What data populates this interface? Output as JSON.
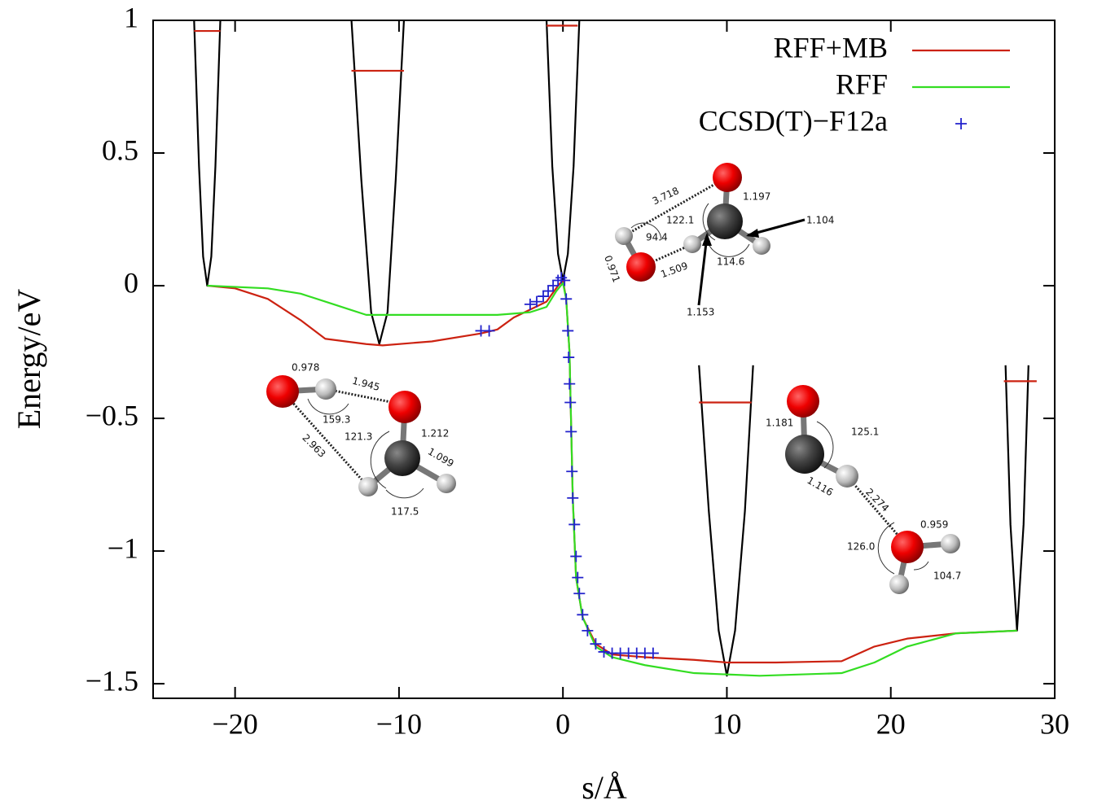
{
  "chart_data": {
    "type": "line",
    "x_label": "s/Å",
    "y_label": "Energy/eV",
    "xlim": [
      -25,
      30
    ],
    "ylim": [
      -1.555,
      1
    ],
    "xticks": [
      {
        "value": -20,
        "label": "−20"
      },
      {
        "value": -10,
        "label": "−10"
      },
      0,
      10,
      20,
      30
    ],
    "yticks": [
      {
        "value": -1.5,
        "label": "−1.5"
      },
      {
        "value": -1,
        "label": "−1"
      },
      {
        "value": -0.5,
        "label": "−0.5"
      },
      0,
      0.5,
      1
    ],
    "legend": "upper right",
    "series": [
      {
        "name": "RFF+MB",
        "color": "#cc2211",
        "style": "line",
        "x": [
          -21.7,
          -20,
          -18,
          -16,
          -14.5,
          -12,
          -11,
          -8,
          -5,
          -4,
          -3,
          -2,
          -1,
          -0.3,
          0,
          0.2,
          0.4,
          0.6,
          0.8,
          1.2,
          2,
          3,
          5,
          8,
          10,
          13,
          17,
          19,
          21,
          24,
          27.7
        ],
        "values": [
          0,
          -0.01,
          -0.05,
          -0.13,
          -0.2,
          -0.22,
          -0.225,
          -0.21,
          -0.18,
          -0.165,
          -0.12,
          -0.09,
          -0.06,
          0,
          0.02,
          -0.05,
          -0.25,
          -0.8,
          -1.1,
          -1.25,
          -1.35,
          -1.39,
          -1.4,
          -1.41,
          -1.42,
          -1.42,
          -1.415,
          -1.36,
          -1.33,
          -1.31,
          -1.3
        ]
      },
      {
        "name": "RFF",
        "color": "#33dd22",
        "style": "line",
        "x": [
          -21.7,
          -18,
          -16,
          -14,
          -12,
          -8,
          -4,
          -2,
          -1,
          -0.4,
          0,
          0.2,
          0.4,
          0.6,
          0.8,
          1.2,
          2,
          3,
          5,
          8,
          12,
          17,
          19,
          21,
          24,
          27.7
        ],
        "values": [
          0,
          -0.01,
          -0.03,
          -0.07,
          -0.11,
          -0.11,
          -0.11,
          -0.1,
          -0.08,
          -0.02,
          0.01,
          -0.05,
          -0.25,
          -0.8,
          -1.1,
          -1.25,
          -1.36,
          -1.4,
          -1.43,
          -1.46,
          -1.47,
          -1.46,
          -1.42,
          -1.36,
          -1.31,
          -1.3
        ]
      },
      {
        "name": "CCSD(T)−F12a",
        "color": "#2222cc",
        "style": "points",
        "x": [
          -5,
          -4.5,
          -2,
          -1.6,
          -1.2,
          -0.9,
          -0.6,
          -0.3,
          -0.1,
          0.1,
          0.2,
          0.3,
          0.35,
          0.4,
          0.45,
          0.5,
          0.55,
          0.6,
          0.7,
          0.8,
          0.9,
          1.0,
          1.2,
          1.5,
          2,
          2.5,
          3,
          3.5,
          4,
          4.5,
          5,
          5.5
        ],
        "values": [
          -0.17,
          -0.17,
          -0.07,
          -0.06,
          -0.04,
          -0.02,
          0,
          0.02,
          0.03,
          0.02,
          -0.05,
          -0.17,
          -0.27,
          -0.37,
          -0.44,
          -0.55,
          -0.7,
          -0.8,
          -0.9,
          -1.02,
          -1.1,
          -1.16,
          -1.24,
          -1.3,
          -1.35,
          -1.38,
          -1.385,
          -1.385,
          -1.385,
          -1.385,
          -1.385,
          -1.385
        ]
      },
      {
        "color": "#000000",
        "style": "line",
        "x": [
          -22.5,
          -22.2,
          -21.95,
          -21.7,
          -21.45,
          -21.2,
          -20.9
        ],
        "values": [
          1,
          0.45,
          0.11,
          0,
          0.11,
          0.45,
          1
        ]
      },
      {
        "color": "#000000",
        "style": "line",
        "x": [
          -12.9,
          -12.3,
          -11.7,
          -11.2,
          -10.7,
          -10.2,
          -9.7
        ],
        "values": [
          1,
          0.4,
          -0.1,
          -0.22,
          -0.1,
          0.4,
          1
        ]
      },
      {
        "color": "#000000",
        "style": "line",
        "x": [
          -1,
          -0.65,
          -0.3,
          0,
          0.3,
          0.65,
          1
        ],
        "values": [
          1,
          0.45,
          0.12,
          0.02,
          0.12,
          0.45,
          1
        ]
      },
      {
        "color": "#000000",
        "style": "line",
        "x": [
          8.3,
          8.9,
          9.5,
          10,
          10.5,
          11.1,
          11.6
        ],
        "values": [
          -0.3,
          -0.85,
          -1.3,
          -1.47,
          -1.3,
          -0.85,
          -0.3
        ]
      },
      {
        "color": "#000000",
        "style": "line",
        "x": [
          27,
          27.3,
          27.7,
          28.1,
          28.4
        ],
        "values": [
          -0.3,
          -0.9,
          -1.3,
          -0.9,
          -0.3
        ]
      },
      {
        "color": "#cc2211",
        "style": "line",
        "x": [
          -22.5,
          -20.9
        ],
        "values": [
          0.96,
          0.96
        ]
      },
      {
        "color": "#cc2211",
        "style": "line",
        "x": [
          -12.9,
          -9.7
        ],
        "values": [
          0.81,
          0.81
        ]
      },
      {
        "color": "#cc2211",
        "style": "line",
        "x": [
          -1,
          0.9
        ],
        "values": [
          0.98,
          0.98
        ]
      },
      {
        "color": "#cc2211",
        "style": "line",
        "x": [
          8.3,
          11.5
        ],
        "values": [
          -0.44,
          -0.44
        ]
      },
      {
        "color": "#cc2211",
        "style": "line",
        "x": [
          26.9,
          28.9
        ],
        "values": [
          -0.36,
          -0.36
        ]
      }
    ],
    "annotations": [
      "3.718",
      "1.197",
      "122.1",
      "1.104",
      "94.4",
      "0.971",
      "1.509",
      "114.6",
      "1.153",
      "0.978",
      "1.945",
      "159.3",
      "121.3",
      "1.212",
      "2.963",
      "1.099",
      "117.5",
      "1.181",
      "125.1",
      "1.116",
      "2.274",
      "0.959",
      "126.0",
      "104.7"
    ]
  }
}
